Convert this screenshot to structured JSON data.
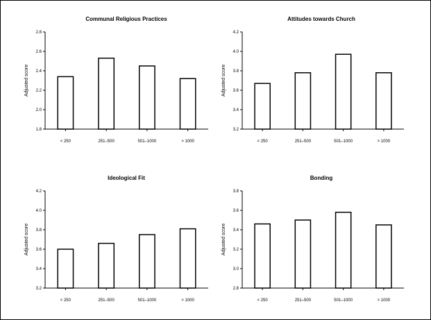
{
  "chart_data": [
    {
      "type": "bar",
      "title": "Communal Religious Practices",
      "ylabel": "Adjusted score",
      "categories": [
        "< 250",
        "251–500",
        "501–1000",
        "> 1000"
      ],
      "values": [
        2.34,
        2.53,
        2.45,
        2.32
      ],
      "ylim": [
        1.8,
        2.8
      ],
      "yticks": [
        "1.8",
        "2.0",
        "2.2",
        "2.4",
        "2.6",
        "2.8"
      ],
      "grid": false
    },
    {
      "type": "bar",
      "title": "Attitudes towards Church",
      "ylabel": "Adjusted score",
      "categories": [
        "< 250",
        "251–500",
        "501–1000",
        "> 1000"
      ],
      "values": [
        3.67,
        3.78,
        3.97,
        3.78
      ],
      "ylim": [
        3.2,
        4.2
      ],
      "yticks": [
        "3.2",
        "3.4",
        "3.6",
        "3.8",
        "4.0",
        "4.2"
      ],
      "grid": false
    },
    {
      "type": "bar",
      "title": "Ideological Fit",
      "ylabel": "Adjusted score",
      "categories": [
        "< 250",
        "251–500",
        "501–1000",
        "> 1000"
      ],
      "values": [
        3.6,
        3.66,
        3.75,
        3.81
      ],
      "ylim": [
        3.2,
        4.2
      ],
      "yticks": [
        "3.2",
        "3.4",
        "3.6",
        "3.8",
        "4.0",
        "4.2"
      ],
      "grid": false
    },
    {
      "type": "bar",
      "title": "Bonding",
      "ylabel": "Adjusted score",
      "categories": [
        "< 250",
        "251–500",
        "501–1000",
        "> 1000"
      ],
      "values": [
        3.46,
        3.5,
        3.58,
        3.45
      ],
      "ylim": [
        2.8,
        3.8
      ],
      "yticks": [
        "2.8",
        "3.0",
        "3.2",
        "3.4",
        "3.6",
        "3.8"
      ],
      "grid": false
    }
  ]
}
